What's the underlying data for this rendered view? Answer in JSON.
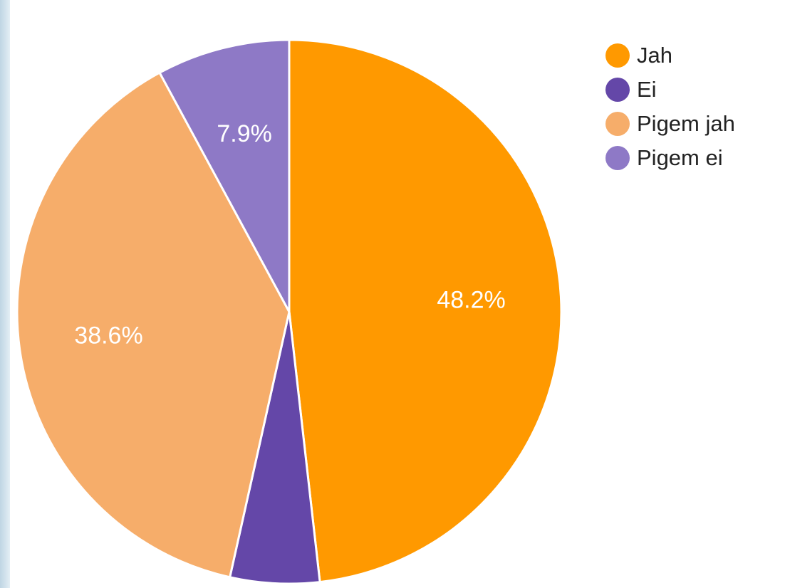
{
  "chart_data": {
    "type": "pie",
    "title": "",
    "legend_position": "right",
    "start_angle_deg": 0,
    "direction": "clockwise",
    "slices": [
      {
        "label": "Jah",
        "value": 48.2,
        "display": "48.2%",
        "color": "#ff9900"
      },
      {
        "label": "Ei",
        "value": 5.3,
        "display": "",
        "color": "#6447a8"
      },
      {
        "label": "Pigem jah",
        "value": 38.6,
        "display": "38.6%",
        "color": "#f6ad6a"
      },
      {
        "label": "Pigem ei",
        "value": 7.9,
        "display": "7.9%",
        "color": "#8e79c6"
      }
    ]
  }
}
